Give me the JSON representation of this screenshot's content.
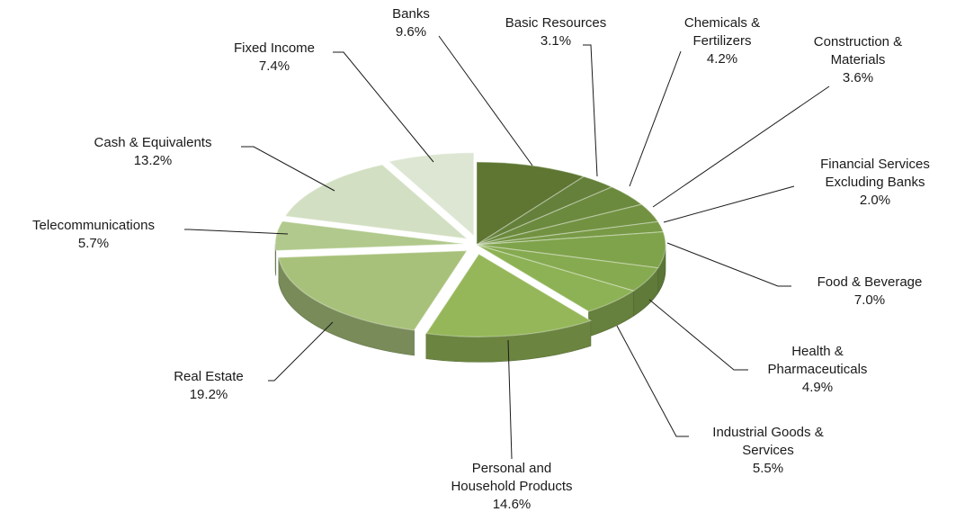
{
  "chart_data": {
    "type": "pie",
    "title": "",
    "slices": [
      {
        "lines": [
          "Banks"
        ],
        "pct": "9.6%",
        "value": 9.6,
        "color": "#5e7632"
      },
      {
        "lines": [
          "Basic Resources"
        ],
        "pct": "3.1%",
        "value": 3.1,
        "color": "#64803a"
      },
      {
        "lines": [
          "Chemicals &",
          "Fertilizers"
        ],
        "pct": "4.2%",
        "value": 4.2,
        "color": "#6b8a3e"
      },
      {
        "lines": [
          "Construction &",
          "Materials"
        ],
        "pct": "3.6%",
        "value": 3.6,
        "color": "#729242"
      },
      {
        "lines": [
          "Financial Services",
          "Excluding Banks"
        ],
        "pct": "2.0%",
        "value": 2.0,
        "color": "#789a46"
      },
      {
        "lines": [
          "Food & Beverage"
        ],
        "pct": "7.0%",
        "value": 7.0,
        "color": "#7fa34b"
      },
      {
        "lines": [
          "Health &",
          "Pharmaceuticals"
        ],
        "pct": "4.9%",
        "value": 4.9,
        "color": "#86aa50"
      },
      {
        "lines": [
          "Industrial Goods &",
          "Services"
        ],
        "pct": "5.5%",
        "value": 5.5,
        "color": "#8db255"
      },
      {
        "lines": [
          "Personal and",
          "Household Products"
        ],
        "pct": "14.6%",
        "value": 14.6,
        "color": "#95b759"
      },
      {
        "lines": [
          "Real Estate"
        ],
        "pct": "19.2%",
        "value": 19.2,
        "color": "#a7c17a"
      },
      {
        "lines": [
          "Telecommunications"
        ],
        "pct": "5.7%",
        "value": 5.7,
        "color": "#b1c98c"
      },
      {
        "lines": [
          "Cash  &  Equivalents"
        ],
        "pct": "13.2%",
        "value": 13.2,
        "color": "#d2dfc2"
      },
      {
        "lines": [
          "Fixed Income"
        ],
        "pct": "7.4%",
        "value": 7.4,
        "color": "#dde6d2"
      }
    ]
  }
}
